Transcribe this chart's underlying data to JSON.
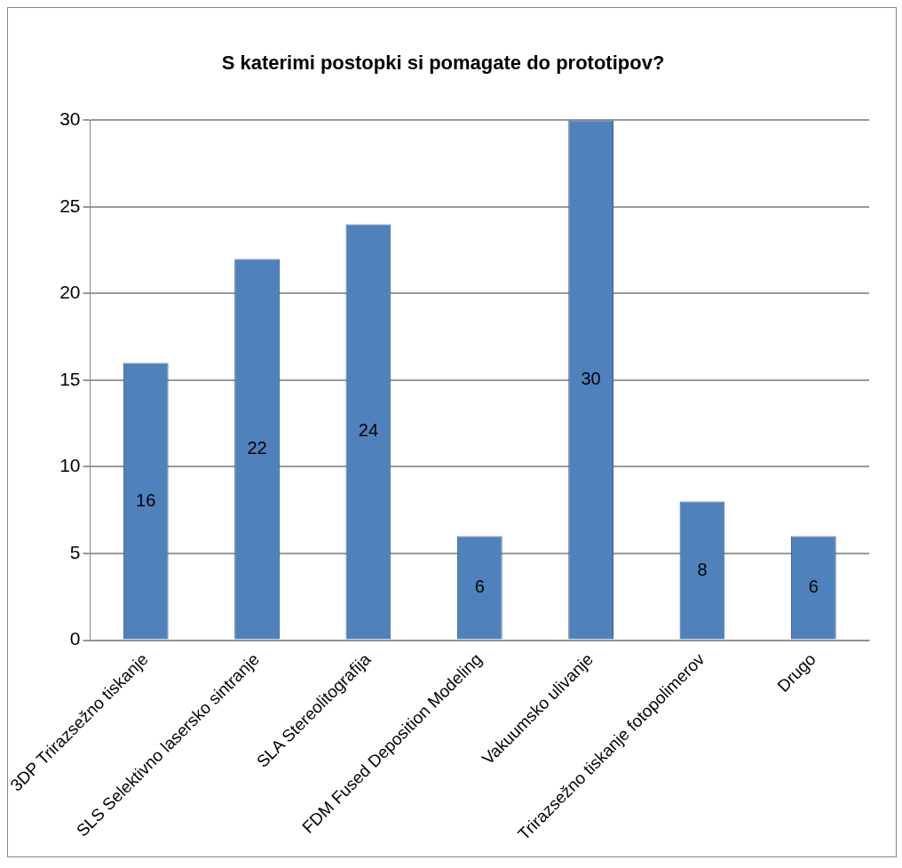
{
  "chart_data": {
    "type": "bar",
    "title": "S katerimi postopki si pomagate do prototipov?",
    "categories": [
      "3DP Trirazsežno tiskanje",
      "SLS Selektivno lasersko sintranje",
      "SLA Stereolitografija",
      "FDM Fused Deposition Modeling",
      "Vakuumsko ulivanje",
      "Trirazsežno tiskanje fotopolimerov",
      "Drugo"
    ],
    "values": [
      16,
      22,
      24,
      6,
      30,
      8,
      6
    ],
    "color": "#4f81bd",
    "ylim": [
      0,
      30
    ],
    "yticks": [
      0,
      5,
      10,
      15,
      20,
      25,
      30
    ],
    "grid": "y",
    "data_labels": true,
    "legend": false
  }
}
